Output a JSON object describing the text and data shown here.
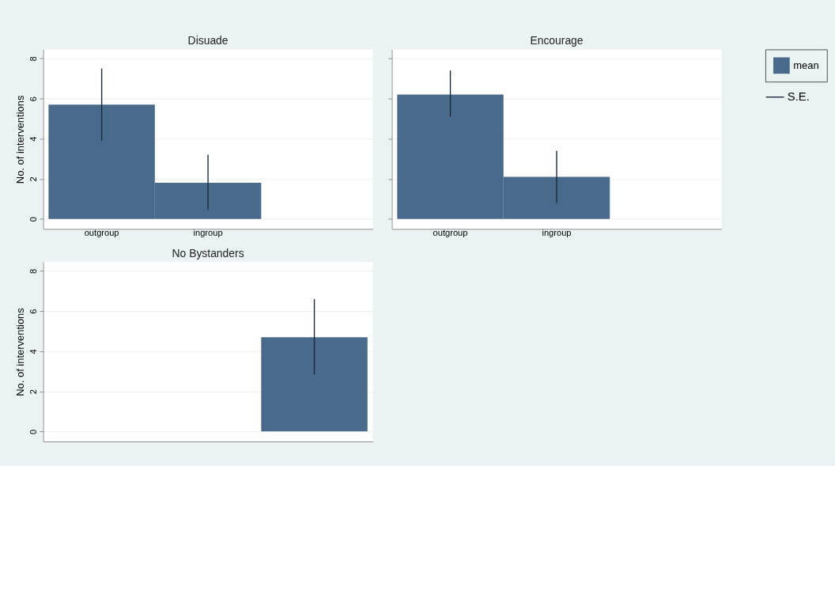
{
  "chart_data": [
    {
      "type": "bar",
      "title": "Disuade",
      "ylabel": "No. of interventions",
      "categories": [
        "outgroup",
        "ingroup",
        null
      ],
      "ylim": [
        -0.5,
        8.45
      ],
      "yticks": [
        0,
        2,
        4,
        6,
        8
      ],
      "grid": "y",
      "series": [
        {
          "color": "#4a6a8c",
          "values": [
            5.7,
            1.8,
            null
          ],
          "errors": [
            [
              3.9,
              7.5
            ],
            [
              0.45,
              3.2
            ],
            null
          ]
        }
      ]
    },
    {
      "type": "bar",
      "title": "Encourage",
      "categories": [
        "outgroup",
        "ingroup",
        null
      ],
      "ylim": [
        -0.5,
        8.45
      ],
      "yticks": [
        0,
        2,
        4,
        6,
        8
      ],
      "grid": "y",
      "tick_labels": "x",
      "series": [
        {
          "color": "#4a6a8c",
          "values": [
            6.2,
            2.1,
            null
          ],
          "errors": [
            [
              5.1,
              7.4
            ],
            [
              0.8,
              3.4
            ],
            null
          ]
        }
      ]
    },
    {
      "type": "bar",
      "title": "No Bystanders",
      "ylabel": "No. of interventions",
      "categories": [
        null,
        null,
        null
      ],
      "ylim": [
        -0.5,
        8.45
      ],
      "yticks": [
        0,
        2,
        4,
        6,
        8
      ],
      "grid": "y",
      "tick_labels": "y",
      "legend": "right",
      "annotations": [
        "S.E."
      ],
      "series": [
        {
          "name": "mean",
          "color": "#4a6a8c",
          "values": [
            null,
            null,
            4.7
          ],
          "errors": [
            null,
            null,
            [
              2.85,
              6.6
            ]
          ]
        }
      ]
    }
  ]
}
